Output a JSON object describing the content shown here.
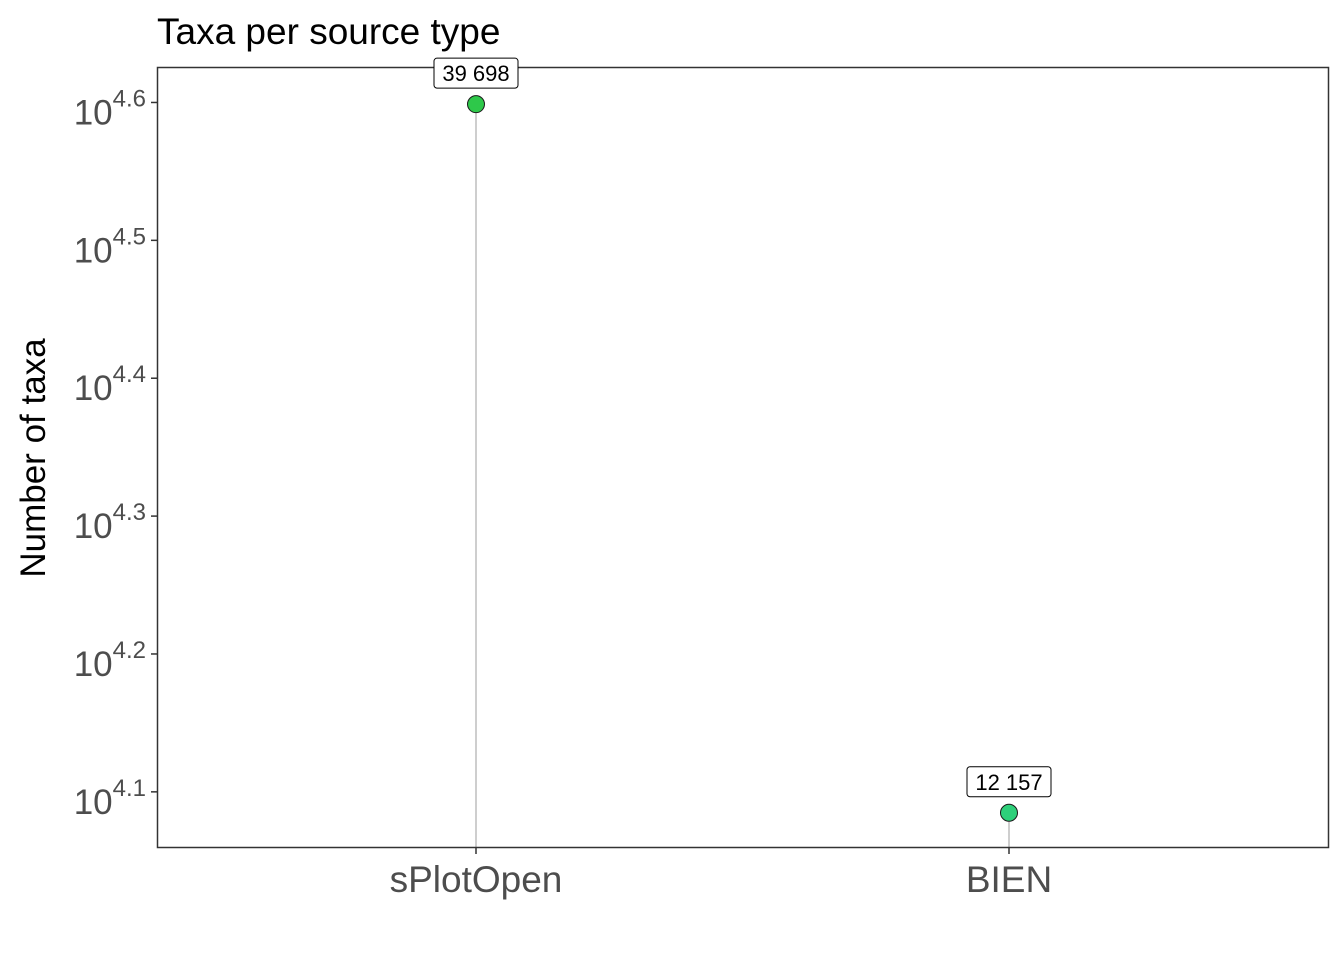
{
  "chart_data": {
    "type": "lollipop",
    "title": "Taxa per source type",
    "xlabel": "",
    "ylabel": "Number of taxa",
    "y_scale": "log10",
    "ylim_log10": [
      4.06,
      4.625
    ],
    "y_ticks": [
      {
        "base": "10",
        "exp": "4.1",
        "value": 4.1
      },
      {
        "base": "10",
        "exp": "4.2",
        "value": 4.2
      },
      {
        "base": "10",
        "exp": "4.3",
        "value": 4.3
      },
      {
        "base": "10",
        "exp": "4.4",
        "value": 4.4
      },
      {
        "base": "10",
        "exp": "4.5",
        "value": 4.5
      },
      {
        "base": "10",
        "exp": "4.6",
        "value": 4.6
      }
    ],
    "categories": [
      "sPlotOpen",
      "BIEN"
    ],
    "values": [
      39698,
      12157
    ],
    "labels": [
      "39 698",
      "12 157"
    ],
    "point_colors": [
      "#2ec84a",
      "#2ed07a"
    ],
    "stem_color": "#bdbdbd",
    "grid": false,
    "legend": "none"
  }
}
